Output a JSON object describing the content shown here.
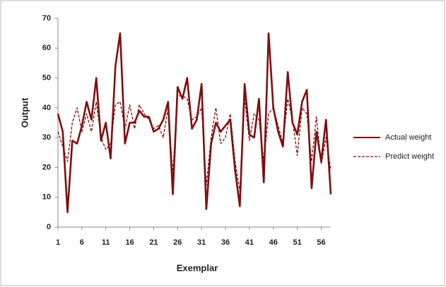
{
  "chart_data": {
    "type": "line",
    "x_label": "Exemplar",
    "y_label": "Output",
    "x": [
      1,
      2,
      3,
      4,
      5,
      6,
      7,
      8,
      9,
      10,
      11,
      12,
      13,
      14,
      15,
      16,
      17,
      18,
      19,
      20,
      21,
      22,
      23,
      24,
      25,
      26,
      27,
      28,
      29,
      30,
      31,
      32,
      33,
      34,
      35,
      36,
      37,
      38,
      39,
      40,
      41,
      42,
      43,
      44,
      45,
      46,
      47,
      48,
      49,
      50,
      51,
      52,
      53,
      54,
      55,
      56,
      57,
      58
    ],
    "series": [
      {
        "name": "Actual weight",
        "color": "#7f0f0f",
        "dash": false,
        "values": [
          38,
          32,
          5,
          29,
          28,
          34,
          42,
          36,
          50,
          29,
          35,
          23,
          54,
          65,
          28,
          35,
          35,
          39,
          37,
          37,
          32,
          33,
          36,
          42,
          11,
          47,
          43,
          50,
          33,
          36,
          48,
          6,
          28,
          35,
          32,
          34,
          36,
          19,
          7,
          48,
          31,
          30,
          43,
          15,
          65,
          40,
          32,
          27,
          52,
          35,
          31,
          42,
          46,
          13,
          32,
          22,
          36,
          11
        ]
      },
      {
        "name": "Predict weight",
        "color": "#7f0f0f",
        "dash": true,
        "values": [
          32,
          27,
          22,
          35,
          40,
          32,
          38,
          32,
          42,
          30,
          26,
          28,
          41,
          42,
          33,
          41,
          33,
          41,
          38,
          36,
          33,
          34,
          30,
          40,
          18,
          44,
          44,
          43,
          36,
          37,
          40,
          14,
          30,
          40,
          28,
          30,
          38,
          22,
          12,
          43,
          29,
          38,
          36,
          22,
          38,
          40,
          34,
          28,
          43,
          36,
          24,
          40,
          38,
          22,
          37,
          21,
          30,
          19
        ]
      }
    ],
    "xlim": [
      1,
      58
    ],
    "xticks": [
      1,
      6,
      11,
      16,
      21,
      26,
      31,
      36,
      41,
      46,
      51,
      56
    ],
    "ylim": [
      0,
      70
    ],
    "yticks": [
      0,
      10,
      20,
      30,
      40,
      50,
      60,
      70
    ],
    "grid": false,
    "legend": "right"
  }
}
